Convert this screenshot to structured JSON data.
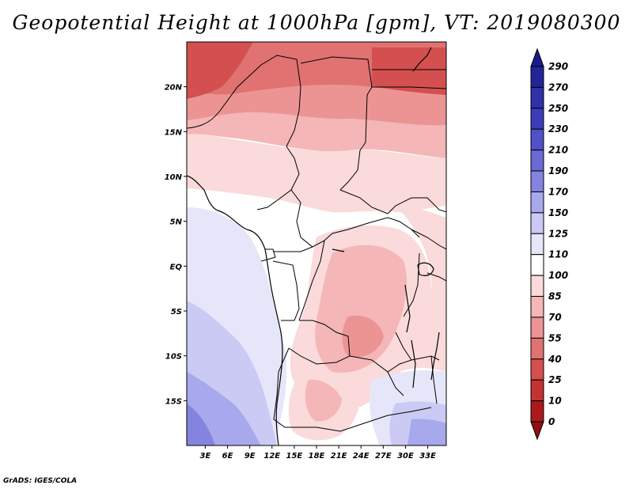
{
  "title": "Geopotential Height at 1000hPa [gpm], VT: 2019080300",
  "credit": "GrADS: IGES/COLA",
  "map": {
    "x_ticks": [
      "3E",
      "6E",
      "9E",
      "12E",
      "15E",
      "18E",
      "21E",
      "24E",
      "27E",
      "30E",
      "33E"
    ],
    "y_ticks": [
      "20N",
      "15N",
      "10N",
      "5N",
      "EQ",
      "5S",
      "10S",
      "15S"
    ],
    "x_tick_values": [
      3,
      6,
      9,
      12,
      15,
      18,
      21,
      24,
      27,
      30,
      33
    ],
    "y_tick_values": [
      20,
      15,
      10,
      5,
      0,
      -5,
      -10,
      -15
    ],
    "lon_range": [
      0.5,
      35.5
    ],
    "lat_range": [
      -20,
      25
    ]
  },
  "colorbar": {
    "labels": [
      "290",
      "270",
      "250",
      "230",
      "210",
      "190",
      "170",
      "150",
      "125",
      "110",
      "100",
      "85",
      "70",
      "55",
      "40",
      "25",
      "10",
      "0"
    ],
    "colors": [
      "#1a1a8c",
      "#24249a",
      "#3030aa",
      "#3c3cba",
      "#5050c8",
      "#6a6ad4",
      "#8484e0",
      "#a8a8ec",
      "#cacaf4",
      "#e6e6fa",
      "#ffffff",
      "#fadada",
      "#f4b6b6",
      "#ec9494",
      "#e07272",
      "#d45050",
      "#c43232",
      "#aa1a1a",
      "#8e1010"
    ]
  }
}
